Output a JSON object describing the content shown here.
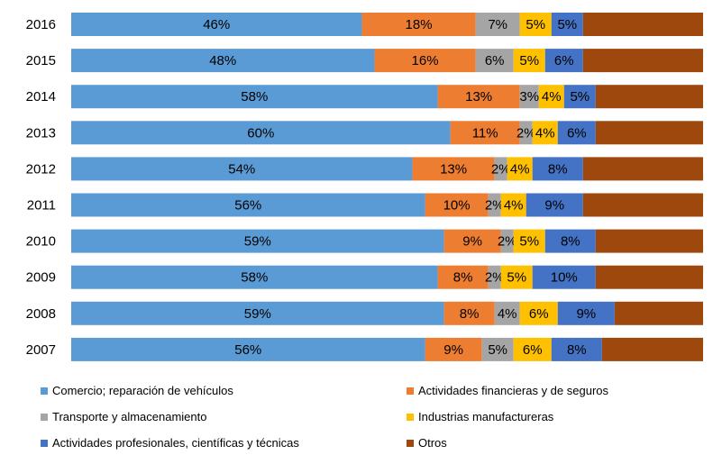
{
  "chart_data": {
    "type": "bar",
    "orientation": "horizontal",
    "stacked": "percent",
    "categories": [
      "2016",
      "2015",
      "2014",
      "2013",
      "2012",
      "2011",
      "2010",
      "2009",
      "2008",
      "2007"
    ],
    "series": [
      {
        "name": "Comercio; reparación de vehículos",
        "color": "#5B9BD5",
        "values": [
          46,
          48,
          58,
          60,
          54,
          56,
          59,
          58,
          59,
          56
        ],
        "labels": [
          "46%",
          "48%",
          "58%",
          "60%",
          "54%",
          "56%",
          "59%",
          "58%",
          "59%",
          "56%"
        ]
      },
      {
        "name": "Actividades financieras y de seguros",
        "color": "#ED7D31",
        "values": [
          18,
          16,
          13,
          11,
          13,
          10,
          9,
          8,
          8,
          9
        ],
        "labels": [
          "18%",
          "16%",
          "13%",
          "11%",
          "13%",
          "10%",
          "9%",
          "8%",
          "8%",
          "9%"
        ]
      },
      {
        "name": "Transporte y almacenamiento",
        "color": "#A5A5A5",
        "values": [
          7,
          6,
          3,
          2,
          2,
          2,
          2,
          2,
          4,
          5
        ],
        "labels": [
          "7%",
          "6%",
          "3%",
          "2%",
          "2%",
          "2%",
          "2%",
          "2%",
          "4%",
          "5%"
        ]
      },
      {
        "name": "Industrias manufactureras",
        "color": "#FFC000",
        "values": [
          5,
          5,
          4,
          4,
          4,
          4,
          5,
          5,
          6,
          6
        ],
        "labels": [
          "5%",
          "5%",
          "4%",
          "4%",
          "4%",
          "4%",
          "5%",
          "5%",
          "6%",
          "6%"
        ]
      },
      {
        "name": "Actividades profesionales, científicas y técnicas",
        "color": "#4472C4",
        "values": [
          5,
          6,
          5,
          6,
          8,
          9,
          8,
          10,
          9,
          8
        ],
        "labels": [
          "5%",
          "6%",
          "5%",
          "6%",
          "8%",
          "9%",
          "8%",
          "10%",
          "9%",
          "8%"
        ]
      },
      {
        "name": "Otros",
        "color": "#9E480E",
        "values": [
          19,
          19,
          17,
          17,
          19,
          19,
          17,
          17,
          14,
          16
        ],
        "labels": [
          "",
          "",
          "",
          "",
          "",
          "",
          "",
          "",
          "",
          ""
        ]
      }
    ],
    "xlim": [
      0,
      100
    ],
    "grid": false,
    "legend_position": "bottom"
  }
}
